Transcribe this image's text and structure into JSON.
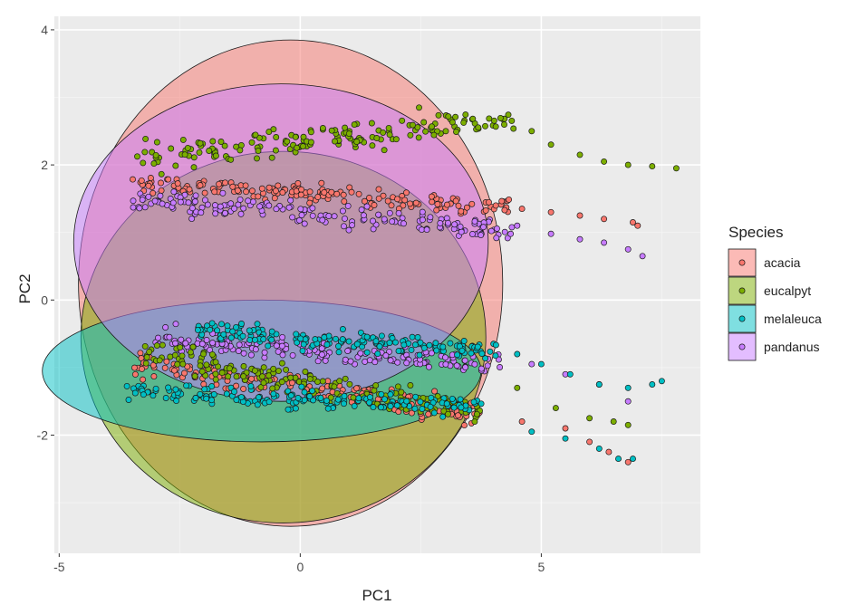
{
  "chart_data": {
    "type": "scatter",
    "xlabel": "PC1",
    "ylabel": "PC2",
    "xlim": [
      -5.1,
      8.3
    ],
    "ylim": [
      -3.75,
      4.2
    ],
    "x_ticks": [
      -5,
      0,
      5
    ],
    "x_tick_labels": [
      "-5",
      "0",
      "5"
    ],
    "y_ticks": [
      -2,
      0,
      2,
      4
    ],
    "y_tick_labels": [
      "-2",
      "0",
      "2",
      "4"
    ],
    "grid": true,
    "legend": {
      "title": "Species",
      "placement": "right",
      "items": [
        "acacia",
        "eucalpyt",
        "melaleuca",
        "pandanus"
      ]
    },
    "series": [
      {
        "name": "acacia",
        "color": "#F8766D",
        "ellipse": {
          "cx": -0.2,
          "cy": 0.25,
          "rx": 4.4,
          "ry": 3.6
        },
        "bands": [
          {
            "x": [
              -3.5,
              4.4
            ],
            "y_start": 1.75,
            "slope": -0.05,
            "spread": 0.13
          },
          {
            "x": [
              -3.5,
              3.8
            ],
            "y_start": -0.95,
            "slope": -0.1,
            "spread": 0.18
          }
        ],
        "tail": [
          [
            4.6,
            1.35
          ],
          [
            5.2,
            1.3
          ],
          [
            5.8,
            1.25
          ],
          [
            6.3,
            1.2
          ],
          [
            6.9,
            1.15
          ],
          [
            7.0,
            1.1
          ],
          [
            4.6,
            -1.8
          ],
          [
            5.5,
            -1.9
          ],
          [
            6.0,
            -2.1
          ],
          [
            6.4,
            -2.25
          ],
          [
            6.8,
            -2.4
          ]
        ]
      },
      {
        "name": "eucalpyt",
        "color": "#7CAE00",
        "ellipse": {
          "cx": -0.35,
          "cy": -0.55,
          "rx": 4.2,
          "ry": 2.75
        },
        "bands": [
          {
            "x": [
              -3.4,
              4.5
            ],
            "y_start": 2.1,
            "slope": 0.07,
            "spread": 0.22
          },
          {
            "x": [
              -3.3,
              3.8
            ],
            "y_start": -0.8,
            "slope": -0.12,
            "spread": 0.2
          }
        ],
        "tail": [
          [
            4.8,
            2.5
          ],
          [
            5.2,
            2.3
          ],
          [
            5.8,
            2.15
          ],
          [
            6.3,
            2.05
          ],
          [
            6.8,
            2.0
          ],
          [
            7.3,
            1.98
          ],
          [
            7.8,
            1.95
          ],
          [
            4.5,
            -1.3
          ],
          [
            5.3,
            -1.6
          ],
          [
            6.0,
            -1.75
          ],
          [
            6.5,
            -1.8
          ],
          [
            6.8,
            -1.85
          ]
        ]
      },
      {
        "name": "melaleuca",
        "color": "#00BFC4",
        "ellipse": {
          "cx": -0.8,
          "cy": -1.05,
          "rx": 4.55,
          "ry": 1.05
        },
        "bands": [
          {
            "x": [
              -2.2,
              4.2
            ],
            "y_start": -0.45,
            "slope": -0.05,
            "spread": 0.15
          },
          {
            "x": [
              -3.6,
              3.8
            ],
            "y_start": -1.35,
            "slope": -0.03,
            "spread": 0.15
          }
        ],
        "tail": [
          [
            4.5,
            -0.8
          ],
          [
            5.0,
            -0.95
          ],
          [
            5.6,
            -1.1
          ],
          [
            6.2,
            -1.25
          ],
          [
            6.8,
            -1.3
          ],
          [
            7.3,
            -1.25
          ],
          [
            7.5,
            -1.2
          ],
          [
            4.8,
            -1.95
          ],
          [
            5.5,
            -2.05
          ],
          [
            6.2,
            -2.2
          ],
          [
            6.6,
            -2.35
          ],
          [
            6.9,
            -2.35
          ]
        ]
      },
      {
        "name": "pandanus",
        "color": "#C77CFF",
        "ellipse": {
          "cx": -0.4,
          "cy": 0.85,
          "rx": 4.3,
          "ry": 2.35
        },
        "bands": [
          {
            "x": [
              -3.5,
              4.4
            ],
            "y_start": 1.5,
            "slope": -0.06,
            "spread": 0.16
          },
          {
            "x": [
              -3.0,
              4.2
            ],
            "y_start": -0.55,
            "slope": -0.06,
            "spread": 0.15
          }
        ],
        "tail": [
          [
            4.5,
            1.1
          ],
          [
            5.2,
            0.98
          ],
          [
            5.8,
            0.9
          ],
          [
            6.3,
            0.85
          ],
          [
            6.8,
            0.75
          ],
          [
            7.1,
            0.65
          ],
          [
            4.8,
            -0.95
          ],
          [
            5.5,
            -1.1
          ],
          [
            6.2,
            -1.25
          ],
          [
            6.8,
            -1.5
          ]
        ]
      }
    ]
  }
}
